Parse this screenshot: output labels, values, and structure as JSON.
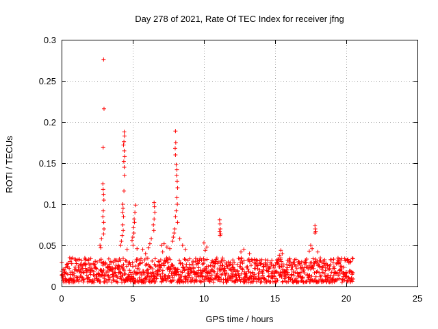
{
  "chart_data": {
    "type": "scatter",
    "title": "Day 278 of 2021, Rate Of TEC Index for receiver jfng",
    "xlabel": "GPS time / hours",
    "ylabel": "ROTI / TECUs",
    "xlim": [
      0,
      25
    ],
    "ylim": [
      0,
      0.3
    ],
    "xticks": [
      0,
      5,
      10,
      15,
      20,
      25
    ],
    "xtick_labels": [
      "0",
      "5",
      "10",
      "15",
      "20",
      "25"
    ],
    "yticks": [
      0,
      0.05,
      0.1,
      0.15,
      0.2,
      0.25,
      0.3
    ],
    "ytick_labels": [
      "0",
      "0.05",
      "0.1",
      "0.15",
      "0.2",
      "0.25",
      "0.3"
    ],
    "grid": true,
    "marker": "+",
    "series": [
      {
        "name": "ROTI",
        "color": "#ff0000",
        "baseline_band": {
          "x_range": [
            0,
            20.5
          ],
          "y_range": [
            0.005,
            0.035
          ],
          "note": "dense scatter of samples approx every 0.05 h"
        },
        "points": [
          {
            "x": 2.95,
            "y": 0.276
          },
          {
            "x": 2.98,
            "y": 0.216
          },
          {
            "x": 2.92,
            "y": 0.169
          },
          {
            "x": 2.9,
            "y": 0.125
          },
          {
            "x": 2.92,
            "y": 0.118
          },
          {
            "x": 2.95,
            "y": 0.112
          },
          {
            "x": 2.97,
            "y": 0.105
          },
          {
            "x": 2.93,
            "y": 0.092
          },
          {
            "x": 2.9,
            "y": 0.085
          },
          {
            "x": 2.96,
            "y": 0.078
          },
          {
            "x": 2.98,
            "y": 0.07
          },
          {
            "x": 2.95,
            "y": 0.064
          },
          {
            "x": 2.7,
            "y": 0.05
          },
          {
            "x": 2.75,
            "y": 0.047
          },
          {
            "x": 2.8,
            "y": 0.058
          },
          {
            "x": 4.4,
            "y": 0.188
          },
          {
            "x": 4.42,
            "y": 0.183
          },
          {
            "x": 4.38,
            "y": 0.176
          },
          {
            "x": 4.35,
            "y": 0.172
          },
          {
            "x": 4.4,
            "y": 0.165
          },
          {
            "x": 4.43,
            "y": 0.158
          },
          {
            "x": 4.37,
            "y": 0.152
          },
          {
            "x": 4.4,
            "y": 0.145
          },
          {
            "x": 4.42,
            "y": 0.135
          },
          {
            "x": 4.38,
            "y": 0.116
          },
          {
            "x": 4.3,
            "y": 0.1
          },
          {
            "x": 4.32,
            "y": 0.095
          },
          {
            "x": 4.28,
            "y": 0.09
          },
          {
            "x": 4.35,
            "y": 0.085
          },
          {
            "x": 4.3,
            "y": 0.075
          },
          {
            "x": 4.33,
            "y": 0.068
          },
          {
            "x": 4.25,
            "y": 0.062
          },
          {
            "x": 4.2,
            "y": 0.055
          },
          {
            "x": 4.15,
            "y": 0.05
          },
          {
            "x": 4.6,
            "y": 0.045
          },
          {
            "x": 5.2,
            "y": 0.099
          },
          {
            "x": 5.15,
            "y": 0.09
          },
          {
            "x": 5.1,
            "y": 0.082
          },
          {
            "x": 5.12,
            "y": 0.078
          },
          {
            "x": 5.05,
            "y": 0.072
          },
          {
            "x": 5.08,
            "y": 0.065
          },
          {
            "x": 5.0,
            "y": 0.06
          },
          {
            "x": 4.95,
            "y": 0.056
          },
          {
            "x": 5.02,
            "y": 0.05
          },
          {
            "x": 5.3,
            "y": 0.046
          },
          {
            "x": 5.7,
            "y": 0.045
          },
          {
            "x": 5.9,
            "y": 0.04
          },
          {
            "x": 6.5,
            "y": 0.102
          },
          {
            "x": 6.52,
            "y": 0.097
          },
          {
            "x": 6.55,
            "y": 0.09
          },
          {
            "x": 6.5,
            "y": 0.082
          },
          {
            "x": 6.45,
            "y": 0.075
          },
          {
            "x": 6.48,
            "y": 0.068
          },
          {
            "x": 6.3,
            "y": 0.058
          },
          {
            "x": 6.2,
            "y": 0.052
          },
          {
            "x": 6.1,
            "y": 0.047
          },
          {
            "x": 7.0,
            "y": 0.05
          },
          {
            "x": 7.2,
            "y": 0.052
          },
          {
            "x": 7.4,
            "y": 0.048
          },
          {
            "x": 7.6,
            "y": 0.046
          },
          {
            "x": 7.1,
            "y": 0.042
          },
          {
            "x": 8.0,
            "y": 0.189
          },
          {
            "x": 8.02,
            "y": 0.175
          },
          {
            "x": 7.98,
            "y": 0.168
          },
          {
            "x": 8.0,
            "y": 0.16
          },
          {
            "x": 8.05,
            "y": 0.148
          },
          {
            "x": 8.1,
            "y": 0.142
          },
          {
            "x": 8.08,
            "y": 0.135
          },
          {
            "x": 8.12,
            "y": 0.128
          },
          {
            "x": 8.15,
            "y": 0.12
          },
          {
            "x": 8.1,
            "y": 0.108
          },
          {
            "x": 8.13,
            "y": 0.1
          },
          {
            "x": 8.05,
            "y": 0.092
          },
          {
            "x": 8.0,
            "y": 0.085
          },
          {
            "x": 8.15,
            "y": 0.078
          },
          {
            "x": 7.95,
            "y": 0.07
          },
          {
            "x": 7.9,
            "y": 0.065
          },
          {
            "x": 7.85,
            "y": 0.06
          },
          {
            "x": 7.8,
            "y": 0.055
          },
          {
            "x": 8.3,
            "y": 0.058
          },
          {
            "x": 8.5,
            "y": 0.05
          },
          {
            "x": 8.7,
            "y": 0.045
          },
          {
            "x": 10.0,
            "y": 0.053
          },
          {
            "x": 10.2,
            "y": 0.048
          },
          {
            "x": 10.1,
            "y": 0.044
          },
          {
            "x": 11.1,
            "y": 0.081
          },
          {
            "x": 11.12,
            "y": 0.076
          },
          {
            "x": 11.15,
            "y": 0.07
          },
          {
            "x": 11.1,
            "y": 0.067
          },
          {
            "x": 11.18,
            "y": 0.064
          },
          {
            "x": 11.13,
            "y": 0.062
          },
          {
            "x": 12.8,
            "y": 0.045
          },
          {
            "x": 12.6,
            "y": 0.042
          },
          {
            "x": 13.2,
            "y": 0.04
          },
          {
            "x": 15.4,
            "y": 0.044
          },
          {
            "x": 15.5,
            "y": 0.04
          },
          {
            "x": 15.3,
            "y": 0.038
          },
          {
            "x": 17.8,
            "y": 0.074
          },
          {
            "x": 17.82,
            "y": 0.07
          },
          {
            "x": 17.85,
            "y": 0.067
          },
          {
            "x": 17.8,
            "y": 0.065
          },
          {
            "x": 17.5,
            "y": 0.05
          },
          {
            "x": 17.6,
            "y": 0.046
          },
          {
            "x": 17.4,
            "y": 0.043
          },
          {
            "x": 18.0,
            "y": 0.042
          }
        ]
      }
    ]
  }
}
